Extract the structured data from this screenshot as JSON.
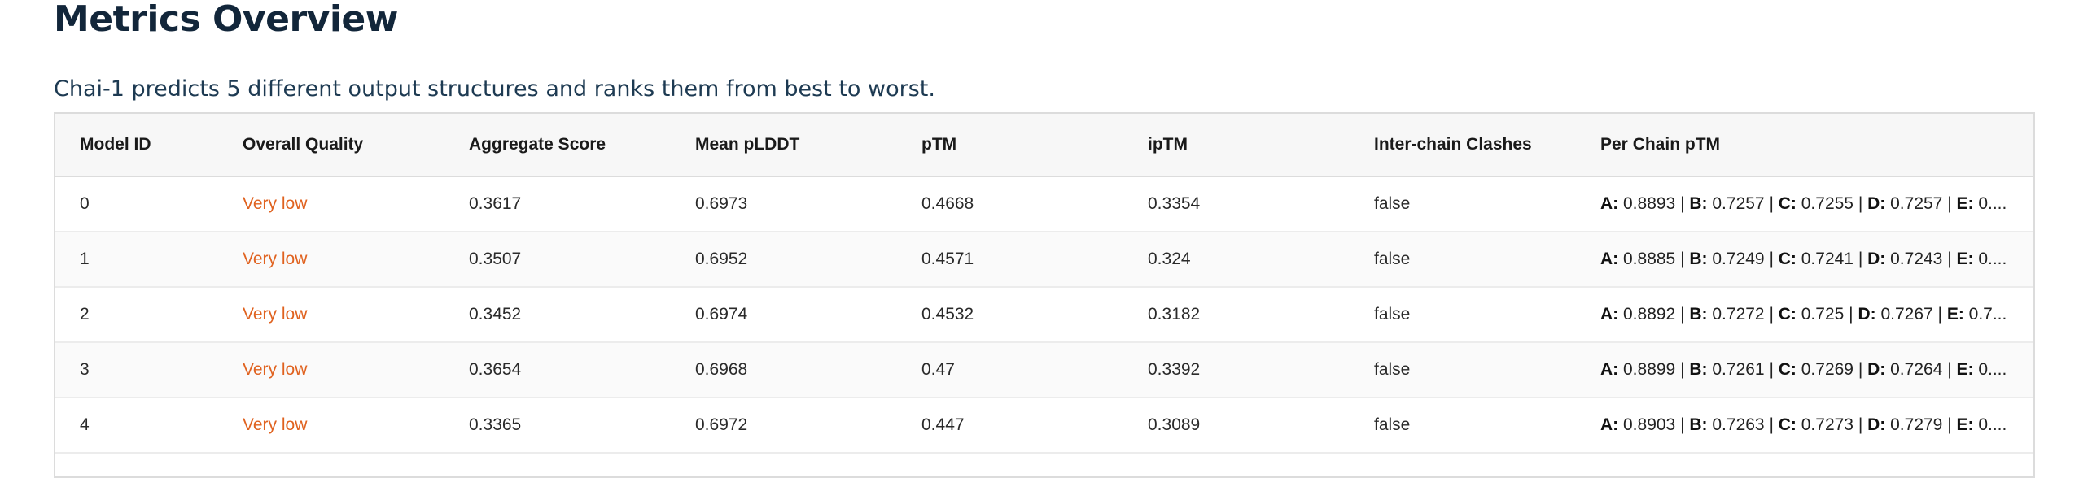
{
  "page": {
    "title": "Metrics Overview",
    "subtitle": "Chai-1 predicts 5 different output structures and ranks them from best to worst."
  },
  "colors": {
    "title": "#12263a",
    "quality_very_low": "#e0621f",
    "border": "#dcdcdc",
    "header_bg": "#f7f7f7"
  },
  "table": {
    "columns": [
      "Model ID",
      "Overall Quality",
      "Aggregate Score",
      "Mean pLDDT",
      "pTM",
      "ipTM",
      "Inter-chain Clashes",
      "Per Chain pTM"
    ],
    "rows": [
      {
        "model_id": "0",
        "quality": "Very low",
        "aggregate": "0.3617",
        "plddt": "0.6973",
        "ptm": "0.4668",
        "iptm": "0.3354",
        "clashes": "false",
        "chains": [
          {
            "k": "A:",
            "v": " 0.8893"
          },
          {
            "k": "B:",
            "v": " 0.7257"
          },
          {
            "k": "C:",
            "v": " 0.7255"
          },
          {
            "k": "D:",
            "v": " 0.7257"
          },
          {
            "k": "E:",
            "v": " 0...."
          }
        ]
      },
      {
        "model_id": "1",
        "quality": "Very low",
        "aggregate": "0.3507",
        "plddt": "0.6952",
        "ptm": "0.4571",
        "iptm": "0.324",
        "clashes": "false",
        "chains": [
          {
            "k": "A:",
            "v": " 0.8885"
          },
          {
            "k": "B:",
            "v": " 0.7249"
          },
          {
            "k": "C:",
            "v": " 0.7241"
          },
          {
            "k": "D:",
            "v": " 0.7243"
          },
          {
            "k": "E:",
            "v": " 0...."
          }
        ]
      },
      {
        "model_id": "2",
        "quality": "Very low",
        "aggregate": "0.3452",
        "plddt": "0.6974",
        "ptm": "0.4532",
        "iptm": "0.3182",
        "clashes": "false",
        "chains": [
          {
            "k": "A:",
            "v": " 0.8892"
          },
          {
            "k": "B:",
            "v": " 0.7272"
          },
          {
            "k": "C:",
            "v": " 0.725"
          },
          {
            "k": "D:",
            "v": " 0.7267"
          },
          {
            "k": "E:",
            "v": " 0.7..."
          }
        ]
      },
      {
        "model_id": "3",
        "quality": "Very low",
        "aggregate": "0.3654",
        "plddt": "0.6968",
        "ptm": "0.47",
        "iptm": "0.3392",
        "clashes": "false",
        "chains": [
          {
            "k": "A:",
            "v": " 0.8899"
          },
          {
            "k": "B:",
            "v": " 0.7261"
          },
          {
            "k": "C:",
            "v": " 0.7269"
          },
          {
            "k": "D:",
            "v": " 0.7264"
          },
          {
            "k": "E:",
            "v": " 0...."
          }
        ]
      },
      {
        "model_id": "4",
        "quality": "Very low",
        "aggregate": "0.3365",
        "plddt": "0.6972",
        "ptm": "0.447",
        "iptm": "0.3089",
        "clashes": "false",
        "chains": [
          {
            "k": "A:",
            "v": " 0.8903"
          },
          {
            "k": "B:",
            "v": " 0.7263"
          },
          {
            "k": "C:",
            "v": " 0.7273"
          },
          {
            "k": "D:",
            "v": " 0.7279"
          },
          {
            "k": "E:",
            "v": " 0...."
          }
        ]
      }
    ]
  }
}
